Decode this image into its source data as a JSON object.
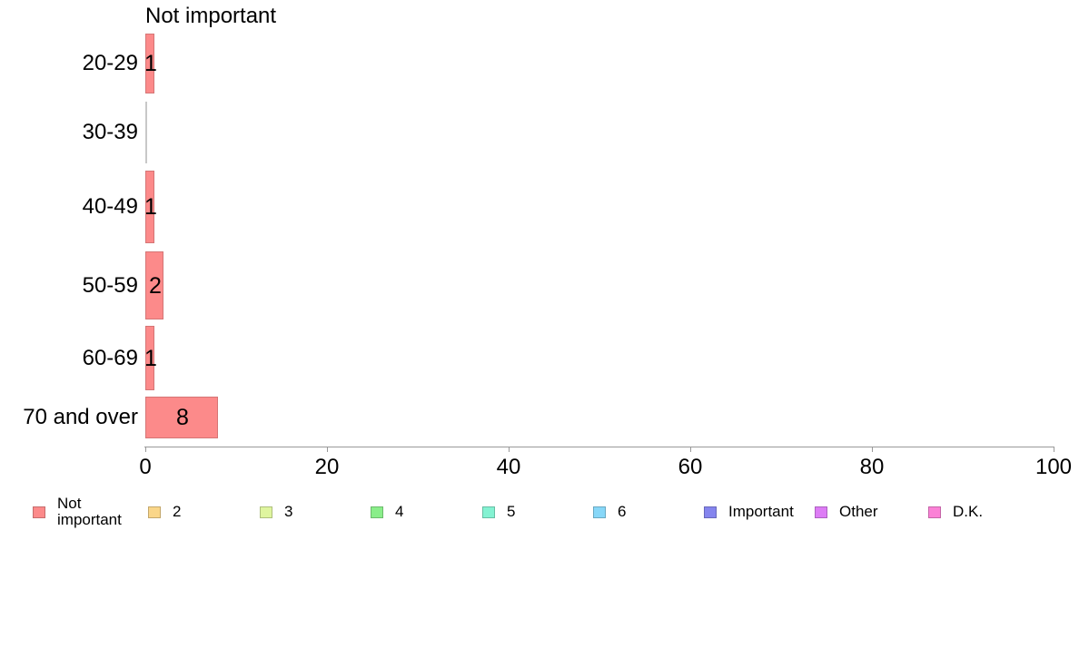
{
  "chart_data": {
    "type": "bar",
    "orientation": "horizontal",
    "title": "Not important",
    "categories": [
      "20-29",
      "30-39",
      "40-49",
      "50-59",
      "60-69",
      "70 and over"
    ],
    "series": [
      {
        "name": "Not important",
        "color": "#FC8A8A",
        "border_color": "#D57575",
        "values": [
          1,
          0,
          1,
          2,
          1,
          8
        ]
      }
    ],
    "xlabel": "",
    "ylabel": "",
    "xlim": [
      0,
      100
    ],
    "x_ticks": [
      0,
      20,
      40,
      60,
      80,
      100
    ],
    "grid": false,
    "axis_color": "#999999",
    "zero_bar_color": "#c8c8c8",
    "legend_position": "bottom",
    "legend": [
      {
        "label": "Not important",
        "color": "#FC8A8A"
      },
      {
        "label": "2",
        "color": "#FAD689"
      },
      {
        "label": "3",
        "color": "#DFF59F"
      },
      {
        "label": "4",
        "color": "#8AEE8A"
      },
      {
        "label": "5",
        "color": "#84F2D2"
      },
      {
        "label": "6",
        "color": "#87D7F8"
      },
      {
        "label": "Important",
        "color": "#8585EE"
      },
      {
        "label": "Other",
        "color": "#DD7CF5"
      },
      {
        "label": "D.K.",
        "color": "#FB81D6"
      }
    ]
  }
}
